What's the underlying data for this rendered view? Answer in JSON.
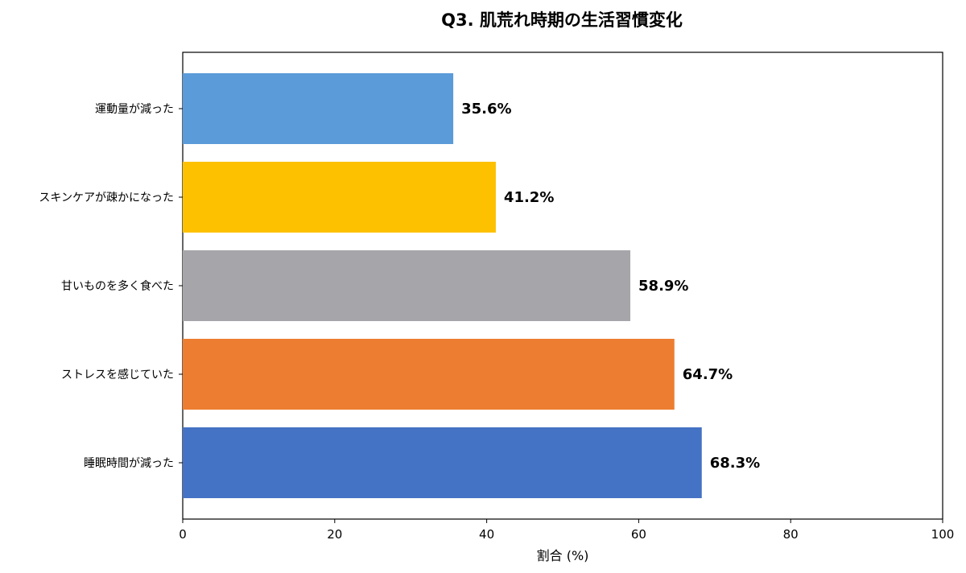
{
  "chart_data": {
    "type": "bar",
    "orientation": "horizontal",
    "title": "Q3. 肌荒れ時期の生活習慣変化",
    "xlabel": "割合 (%)",
    "ylabel": "",
    "xlim": [
      0,
      100
    ],
    "xticks": [
      "0",
      "20",
      "40",
      "60",
      "80",
      "100"
    ],
    "grid": false,
    "categories": [
      "運動量が減った",
      "スキンケアが疎かになった",
      "甘いものを多く食べた",
      "ストレスを感じていた",
      "睡眠時間が減った"
    ],
    "values": [
      35.6,
      41.2,
      58.9,
      64.7,
      68.3
    ],
    "data_labels": [
      "35.6%",
      "41.2%",
      "58.9%",
      "64.7%",
      "68.3%"
    ],
    "colors": [
      "#5b9bd9",
      "#fdc100",
      "#a6a5a9",
      "#ed7d31",
      "#4472c4"
    ]
  }
}
